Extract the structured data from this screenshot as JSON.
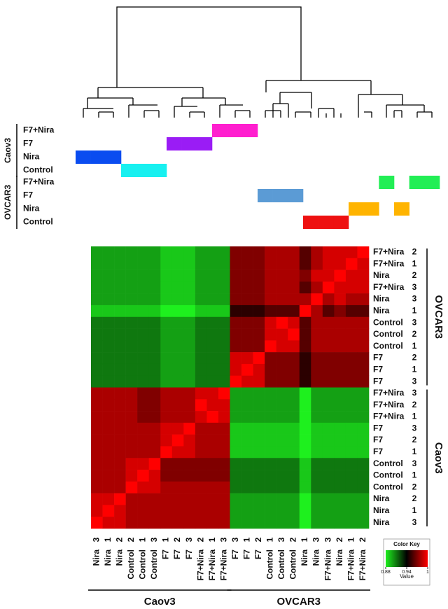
{
  "chart_data": {
    "type": "heatmap",
    "annotation": [
      {
        "name": "Caov3",
        "conditions": [
          {
            "name": "F7+Nira",
            "color": "#ff1fcf"
          },
          {
            "name": "F7",
            "color": "#9a1cf5"
          },
          {
            "name": "Nira",
            "color": "#0a4cf0"
          },
          {
            "name": "Control",
            "color": "#18f0f0"
          }
        ]
      },
      {
        "name": "OVCAR3",
        "conditions": [
          {
            "name": "F7+Nira",
            "color": "#22ee55"
          },
          {
            "name": "F7",
            "color": "#5b9bd5"
          },
          {
            "name": "Nira",
            "color": "#ffb400"
          },
          {
            "name": "Control",
            "color": "#ee1111"
          }
        ]
      }
    ],
    "row_groups": [
      {
        "name": "OVCAR3",
        "rows": [
          {
            "name": "F7+Nira",
            "rep": "2"
          },
          {
            "name": "F7+Nira",
            "rep": "1"
          },
          {
            "name": "Nira",
            "rep": "2"
          },
          {
            "name": "F7+Nira",
            "rep": "3"
          },
          {
            "name": "Nira",
            "rep": "3"
          },
          {
            "name": "Nira",
            "rep": "1"
          },
          {
            "name": "Control",
            "rep": "3"
          },
          {
            "name": "Control",
            "rep": "2"
          },
          {
            "name": "Control",
            "rep": "1"
          },
          {
            "name": "F7",
            "rep": "2"
          },
          {
            "name": "F7",
            "rep": "1"
          },
          {
            "name": "F7",
            "rep": "3"
          }
        ]
      },
      {
        "name": "Caov3",
        "rows": [
          {
            "name": "F7+Nira",
            "rep": "3"
          },
          {
            "name": "F7+Nira",
            "rep": "2"
          },
          {
            "name": "F7+Nira",
            "rep": "1"
          },
          {
            "name": "F7",
            "rep": "3"
          },
          {
            "name": "F7",
            "rep": "2"
          },
          {
            "name": "F7",
            "rep": "1"
          },
          {
            "name": "Control",
            "rep": "3"
          },
          {
            "name": "Control",
            "rep": "1"
          },
          {
            "name": "Control",
            "rep": "2"
          },
          {
            "name": "Nira",
            "rep": "2"
          },
          {
            "name": "Nira",
            "rep": "1"
          },
          {
            "name": "Nira",
            "rep": "3"
          }
        ]
      }
    ],
    "column_groups": [
      {
        "name": "Caov3",
        "columns": [
          {
            "name": "Nira",
            "rep": "3"
          },
          {
            "name": "Nira",
            "rep": "1"
          },
          {
            "name": "Nira",
            "rep": "2"
          },
          {
            "name": "Control",
            "rep": "2"
          },
          {
            "name": "Control",
            "rep": "1"
          },
          {
            "name": "Control",
            "rep": "3"
          },
          {
            "name": "F7",
            "rep": "1"
          },
          {
            "name": "F7",
            "rep": "2"
          },
          {
            "name": "F7",
            "rep": "3"
          },
          {
            "name": "F7+Nira",
            "rep": "2"
          },
          {
            "name": "F7+Nira",
            "rep": "1"
          },
          {
            "name": "F7+Nira",
            "rep": "3"
          }
        ]
      },
      {
        "name": "OVCAR3",
        "columns": [
          {
            "name": "F7",
            "rep": "3"
          },
          {
            "name": "F7",
            "rep": "1"
          },
          {
            "name": "F7",
            "rep": "2"
          },
          {
            "name": "Control",
            "rep": "1"
          },
          {
            "name": "Control",
            "rep": "3"
          },
          {
            "name": "Control",
            "rep": "2"
          },
          {
            "name": "Nira",
            "rep": "1"
          },
          {
            "name": "Nira",
            "rep": "3"
          },
          {
            "name": "F7+Nira",
            "rep": "3"
          },
          {
            "name": "Nira",
            "rep": "2"
          },
          {
            "name": "F7+Nira",
            "rep": "1"
          },
          {
            "name": "F7+Nira",
            "rep": "2"
          }
        ]
      }
    ],
    "matrix": [
      [
        0.9,
        0.9,
        0.9,
        0.9,
        0.9,
        0.9,
        0.89,
        0.89,
        0.89,
        0.9,
        0.9,
        0.9,
        0.97,
        0.97,
        0.97,
        0.98,
        0.98,
        0.98,
        0.96,
        0.98,
        0.99,
        0.99,
        0.99,
        1
      ],
      [
        0.9,
        0.9,
        0.9,
        0.9,
        0.9,
        0.9,
        0.89,
        0.89,
        0.89,
        0.9,
        0.9,
        0.9,
        0.97,
        0.97,
        0.97,
        0.98,
        0.98,
        0.98,
        0.96,
        0.98,
        0.99,
        0.99,
        1,
        0.99
      ],
      [
        0.9,
        0.9,
        0.9,
        0.9,
        0.9,
        0.9,
        0.89,
        0.89,
        0.89,
        0.9,
        0.9,
        0.9,
        0.97,
        0.97,
        0.97,
        0.98,
        0.98,
        0.98,
        0.97,
        0.99,
        0.99,
        1,
        0.99,
        0.99
      ],
      [
        0.9,
        0.9,
        0.9,
        0.9,
        0.9,
        0.9,
        0.89,
        0.89,
        0.89,
        0.9,
        0.9,
        0.9,
        0.97,
        0.97,
        0.97,
        0.98,
        0.98,
        0.98,
        0.96,
        0.98,
        1,
        0.99,
        0.99,
        0.99
      ],
      [
        0.9,
        0.9,
        0.9,
        0.9,
        0.9,
        0.9,
        0.89,
        0.89,
        0.89,
        0.9,
        0.9,
        0.9,
        0.97,
        0.97,
        0.97,
        0.98,
        0.98,
        0.98,
        0.98,
        1,
        0.98,
        0.99,
        0.98,
        0.98
      ],
      [
        0.89,
        0.89,
        0.89,
        0.89,
        0.89,
        0.89,
        0.88,
        0.88,
        0.88,
        0.89,
        0.89,
        0.89,
        0.95,
        0.95,
        0.95,
        0.96,
        0.96,
        0.96,
        1,
        0.98,
        0.96,
        0.97,
        0.96,
        0.96
      ],
      [
        0.91,
        0.91,
        0.91,
        0.91,
        0.91,
        0.91,
        0.9,
        0.9,
        0.9,
        0.91,
        0.91,
        0.91,
        0.97,
        0.97,
        0.97,
        0.99,
        1,
        0.99,
        0.96,
        0.98,
        0.98,
        0.98,
        0.98,
        0.98
      ],
      [
        0.91,
        0.91,
        0.91,
        0.91,
        0.91,
        0.91,
        0.9,
        0.9,
        0.9,
        0.91,
        0.91,
        0.91,
        0.97,
        0.97,
        0.97,
        0.99,
        0.99,
        1,
        0.96,
        0.98,
        0.98,
        0.98,
        0.98,
        0.98
      ],
      [
        0.91,
        0.91,
        0.91,
        0.91,
        0.91,
        0.91,
        0.9,
        0.9,
        0.9,
        0.91,
        0.91,
        0.91,
        0.97,
        0.97,
        0.97,
        1,
        0.99,
        0.99,
        0.96,
        0.98,
        0.98,
        0.98,
        0.98,
        0.98
      ],
      [
        0.91,
        0.91,
        0.91,
        0.91,
        0.91,
        0.91,
        0.9,
        0.9,
        0.9,
        0.91,
        0.91,
        0.91,
        0.99,
        0.99,
        1,
        0.97,
        0.97,
        0.97,
        0.95,
        0.97,
        0.97,
        0.97,
        0.97,
        0.97
      ],
      [
        0.91,
        0.91,
        0.91,
        0.91,
        0.91,
        0.91,
        0.9,
        0.9,
        0.9,
        0.91,
        0.91,
        0.91,
        0.99,
        1,
        0.99,
        0.97,
        0.97,
        0.97,
        0.95,
        0.97,
        0.97,
        0.97,
        0.97,
        0.97
      ],
      [
        0.91,
        0.91,
        0.91,
        0.91,
        0.91,
        0.91,
        0.9,
        0.9,
        0.9,
        0.91,
        0.91,
        0.91,
        1,
        0.99,
        0.99,
        0.97,
        0.97,
        0.97,
        0.95,
        0.97,
        0.97,
        0.97,
        0.97,
        0.97
      ],
      [
        0.98,
        0.98,
        0.98,
        0.98,
        0.97,
        0.97,
        0.98,
        0.98,
        0.98,
        0.99,
        0.99,
        1,
        0.9,
        0.9,
        0.9,
        0.9,
        0.9,
        0.9,
        0.88,
        0.9,
        0.9,
        0.9,
        0.9,
        0.9
      ],
      [
        0.98,
        0.98,
        0.98,
        0.98,
        0.97,
        0.97,
        0.98,
        0.98,
        0.98,
        1,
        0.99,
        0.99,
        0.9,
        0.9,
        0.9,
        0.9,
        0.9,
        0.9,
        0.88,
        0.9,
        0.9,
        0.9,
        0.9,
        0.9
      ],
      [
        0.98,
        0.98,
        0.98,
        0.98,
        0.97,
        0.97,
        0.98,
        0.98,
        0.98,
        0.99,
        1,
        0.99,
        0.9,
        0.9,
        0.9,
        0.9,
        0.9,
        0.9,
        0.88,
        0.9,
        0.9,
        0.9,
        0.9,
        0.9
      ],
      [
        0.98,
        0.98,
        0.98,
        0.98,
        0.98,
        0.98,
        0.99,
        0.99,
        1,
        0.98,
        0.98,
        0.98,
        0.89,
        0.89,
        0.89,
        0.89,
        0.89,
        0.89,
        0.88,
        0.89,
        0.89,
        0.89,
        0.89,
        0.89
      ],
      [
        0.98,
        0.98,
        0.98,
        0.98,
        0.98,
        0.98,
        0.99,
        1,
        0.99,
        0.98,
        0.98,
        0.98,
        0.89,
        0.89,
        0.89,
        0.89,
        0.89,
        0.89,
        0.88,
        0.89,
        0.89,
        0.89,
        0.89,
        0.89
      ],
      [
        0.98,
        0.98,
        0.98,
        0.98,
        0.98,
        0.98,
        1,
        0.99,
        0.99,
        0.98,
        0.98,
        0.98,
        0.89,
        0.89,
        0.89,
        0.89,
        0.89,
        0.89,
        0.88,
        0.89,
        0.89,
        0.89,
        0.89,
        0.89
      ],
      [
        0.98,
        0.98,
        0.98,
        0.99,
        0.99,
        1,
        0.97,
        0.97,
        0.97,
        0.97,
        0.97,
        0.97,
        0.91,
        0.91,
        0.91,
        0.91,
        0.91,
        0.91,
        0.89,
        0.91,
        0.91,
        0.91,
        0.91,
        0.91
      ],
      [
        0.98,
        0.98,
        0.98,
        0.99,
        1,
        0.99,
        0.97,
        0.97,
        0.97,
        0.97,
        0.97,
        0.97,
        0.91,
        0.91,
        0.91,
        0.91,
        0.91,
        0.91,
        0.89,
        0.91,
        0.91,
        0.91,
        0.91,
        0.91
      ],
      [
        0.98,
        0.98,
        0.98,
        1,
        0.99,
        0.99,
        0.98,
        0.98,
        0.98,
        0.98,
        0.98,
        0.98,
        0.91,
        0.91,
        0.91,
        0.91,
        0.91,
        0.91,
        0.89,
        0.91,
        0.91,
        0.91,
        0.91,
        0.91
      ],
      [
        0.99,
        0.99,
        1,
        0.98,
        0.98,
        0.98,
        0.98,
        0.98,
        0.98,
        0.98,
        0.98,
        0.98,
        0.9,
        0.9,
        0.9,
        0.9,
        0.9,
        0.9,
        0.88,
        0.9,
        0.9,
        0.9,
        0.9,
        0.9
      ],
      [
        0.99,
        1,
        0.99,
        0.98,
        0.98,
        0.98,
        0.98,
        0.98,
        0.98,
        0.98,
        0.98,
        0.98,
        0.9,
        0.9,
        0.9,
        0.9,
        0.9,
        0.9,
        0.88,
        0.9,
        0.9,
        0.9,
        0.9,
        0.9
      ],
      [
        1,
        0.99,
        0.99,
        0.98,
        0.98,
        0.98,
        0.98,
        0.98,
        0.98,
        0.98,
        0.98,
        0.98,
        0.9,
        0.9,
        0.9,
        0.9,
        0.9,
        0.9,
        0.88,
        0.9,
        0.9,
        0.9,
        0.9,
        0.9
      ]
    ],
    "color_stops": [
      [
        0.88,
        "#1ef01e"
      ],
      [
        0.94,
        "#000000"
      ],
      [
        1,
        "#ff0000"
      ]
    ],
    "color_key": {
      "title": "Color Key",
      "label": "Value",
      "lim": [
        0.88,
        1
      ],
      "ticks": [
        0.88,
        0.94,
        1
      ]
    }
  }
}
